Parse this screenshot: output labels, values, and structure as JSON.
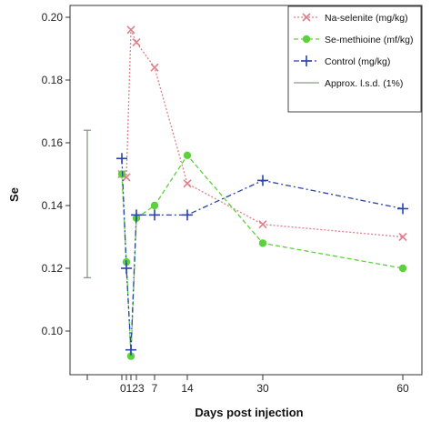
{
  "chart_data": {
    "type": "line",
    "xlabel": "Days post injection",
    "ylabel": "Se",
    "x_ticks": [
      0,
      1,
      2,
      3,
      7,
      14,
      30,
      60
    ],
    "x_tick_labels": [
      "0",
      "1",
      "2",
      "3",
      "7",
      "14",
      "30",
      "60"
    ],
    "y_ticks": [
      0.1,
      0.12,
      0.14,
      0.16,
      0.18,
      0.2
    ],
    "y_tick_labels": [
      "0.10",
      "0.12",
      "0.14",
      "0.16",
      "0.18",
      "0.20"
    ],
    "ylim": [
      0.09,
      0.2
    ],
    "grid": false,
    "legend_position": "top-right",
    "series": [
      {
        "name": "Na-selenite (mg/kg)",
        "marker": "x",
        "color": "#e07f8a",
        "dash": "dotted",
        "x": [
          0,
          1,
          2,
          3,
          7,
          14,
          30,
          60
        ],
        "y": [
          0.15,
          0.149,
          0.196,
          0.192,
          0.184,
          0.147,
          0.134,
          0.13
        ]
      },
      {
        "name": "Se-methioine (mf/kg)",
        "marker": "circle",
        "color": "#5bd13a",
        "dash": "dashed",
        "x": [
          0,
          1,
          2,
          3,
          7,
          14,
          30,
          60
        ],
        "y": [
          0.15,
          0.122,
          0.092,
          0.136,
          0.14,
          0.156,
          0.128,
          0.12
        ]
      },
      {
        "name": "Control (mg/kg)",
        "marker": "plus",
        "color": "#2b44a8",
        "dash": "dashdot",
        "x": [
          0,
          1,
          2,
          3,
          7,
          14,
          30,
          60
        ],
        "y": [
          0.155,
          0.12,
          0.094,
          0.137,
          0.137,
          0.137,
          0.148,
          0.139
        ]
      }
    ],
    "lsd": {
      "name": "Approx. l.s.d. (1%)",
      "color": "#8a9a8a",
      "low": 0.117,
      "high": 0.164
    }
  }
}
